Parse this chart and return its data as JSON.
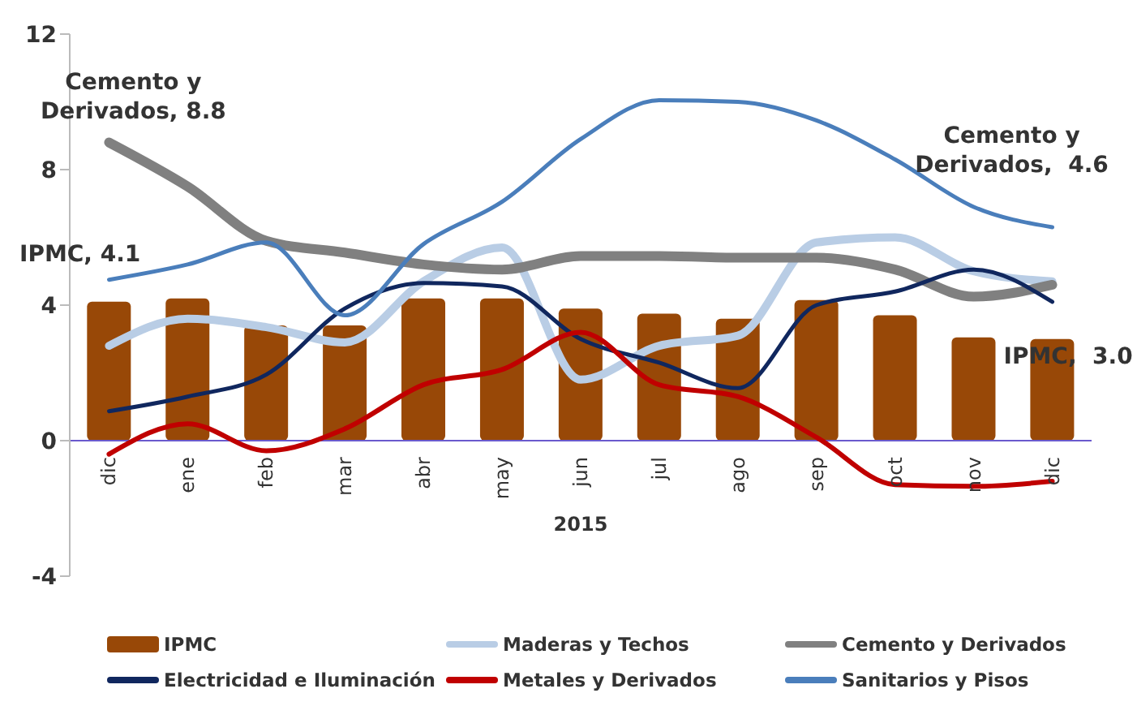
{
  "chart_data": {
    "type": "bar",
    "categories": [
      "dic",
      "ene",
      "feb",
      "mar",
      "abr",
      "may",
      "jun",
      "jul",
      "ago",
      "sep",
      "oct",
      "nov",
      "dic"
    ],
    "xlabel": "2015",
    "ylim": [
      -4,
      12
    ],
    "yticks": [
      -4,
      0,
      4,
      8,
      12
    ],
    "grid": false,
    "legend": "bottom",
    "marker": "none",
    "line_style": "solid",
    "series": [
      {
        "name": "IPMC",
        "color": "#984807",
        "values": [
          4.1,
          4.2,
          3.4,
          3.4,
          4.2,
          4.2,
          3.9,
          3.75,
          3.6,
          4.15,
          3.7,
          3.05,
          3.0
        ]
      },
      {
        "name": "Maderas y Techos",
        "type": "line",
        "color": "#b9cde5",
        "values": [
          2.8,
          3.6,
          3.35,
          2.9,
          4.7,
          5.7,
          1.8,
          2.8,
          3.1,
          5.85,
          6.0,
          5.0,
          4.7
        ]
      },
      {
        "name": "Cemento y Derivados",
        "type": "line",
        "color": "#808080",
        "values": [
          8.8,
          7.5,
          5.9,
          5.55,
          5.2,
          5.05,
          5.45,
          5.45,
          5.4,
          5.4,
          5.05,
          4.25,
          4.6
        ]
      },
      {
        "name": "Electricidad e Iluminación",
        "type": "line",
        "color": "#10275e",
        "values": [
          0.87,
          1.3,
          1.95,
          3.9,
          4.65,
          4.55,
          3.0,
          2.3,
          1.55,
          4.0,
          4.4,
          5.05,
          4.1
        ]
      },
      {
        "name": "Metales y Derivados",
        "type": "line",
        "color": "#c00000",
        "values": [
          -0.4,
          0.5,
          -0.3,
          0.35,
          1.65,
          2.1,
          3.2,
          1.65,
          1.3,
          0.1,
          -1.3,
          -1.35,
          -1.2
        ]
      },
      {
        "name": "Sanitarios y Pisos",
        "type": "line",
        "color": "#4a7ebb",
        "values": [
          4.75,
          5.2,
          5.85,
          3.7,
          5.8,
          7.05,
          8.9,
          10.05,
          10.0,
          9.45,
          8.3,
          6.9,
          6.3
        ]
      }
    ],
    "annotations": [
      "Cemento y Derivados, 8.8",
      "IPMC, 4.1",
      "Cemento y Derivados,  4.6",
      "IPMC,  3.0"
    ]
  }
}
